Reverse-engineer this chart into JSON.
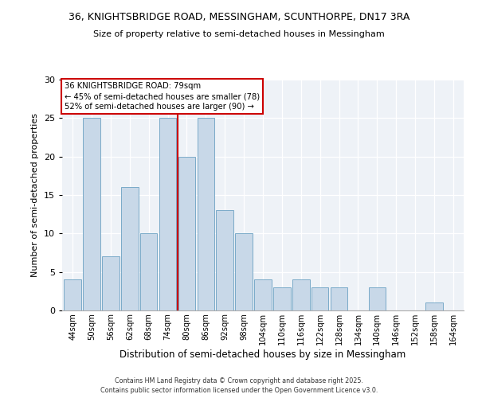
{
  "title_line1": "36, KNIGHTSBRIDGE ROAD, MESSINGHAM, SCUNTHORPE, DN17 3RA",
  "title_line2": "Size of property relative to semi-detached houses in Messingham",
  "xlabel": "Distribution of semi-detached houses by size in Messingham",
  "ylabel": "Number of semi-detached properties",
  "categories": [
    "44sqm",
    "50sqm",
    "56sqm",
    "62sqm",
    "68sqm",
    "74sqm",
    "80sqm",
    "86sqm",
    "92sqm",
    "98sqm",
    "104sqm",
    "110sqm",
    "116sqm",
    "122sqm",
    "128sqm",
    "134sqm",
    "140sqm",
    "146sqm",
    "152sqm",
    "158sqm",
    "164sqm"
  ],
  "values": [
    4,
    25,
    7,
    16,
    10,
    25,
    20,
    25,
    13,
    10,
    4,
    3,
    4,
    3,
    3,
    0,
    3,
    0,
    0,
    1,
    0
  ],
  "bar_color": "#c8d8e8",
  "bar_edge_color": "#7aaac8",
  "vline_color": "#cc0000",
  "annotation_title": "36 KNIGHTSBRIDGE ROAD: 79sqm",
  "annotation_line2": "← 45% of semi-detached houses are smaller (78)",
  "annotation_line3": "52% of semi-detached houses are larger (90) →",
  "ylim": [
    0,
    30
  ],
  "yticks": [
    0,
    5,
    10,
    15,
    20,
    25,
    30
  ],
  "bg_color": "#eef2f7",
  "footer_line1": "Contains HM Land Registry data © Crown copyright and database right 2025.",
  "footer_line2": "Contains public sector information licensed under the Open Government Licence v3.0."
}
